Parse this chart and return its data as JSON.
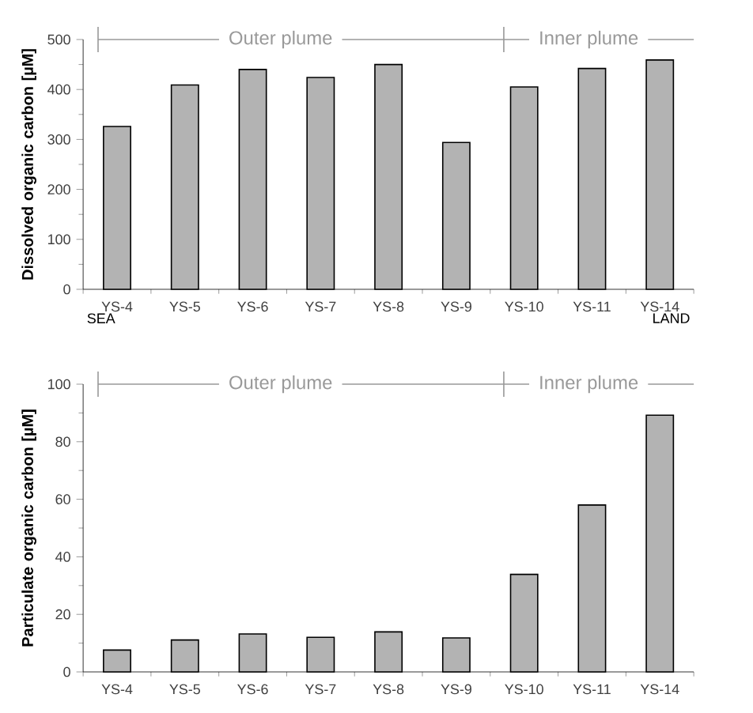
{
  "chart_data": [
    {
      "type": "bar",
      "ylabel": "Dissolved organic carbon [µM]",
      "categories": [
        "YS-4",
        "YS-5",
        "YS-6",
        "YS-7",
        "YS-8",
        "YS-9",
        "YS-10",
        "YS-11",
        "YS-14"
      ],
      "values": [
        326,
        409,
        440,
        424,
        450,
        294,
        405,
        442,
        459
      ],
      "color": "#b3b3b3",
      "ylim": [
        0,
        500
      ],
      "yticks": [
        0,
        100,
        200,
        300,
        400,
        500
      ],
      "annotations": [
        "Outer plume",
        "Inner plume",
        "SEA",
        "LAND"
      ]
    },
    {
      "type": "bar",
      "ylabel": "Particulate organic carbon [µM]",
      "categories": [
        "YS-4",
        "YS-5",
        "YS-6",
        "YS-7",
        "YS-8",
        "YS-9",
        "YS-10",
        "YS-11",
        "YS-14"
      ],
      "values": [
        7.6,
        11.1,
        13.2,
        12.0,
        13.9,
        11.8,
        33.9,
        58.0,
        89.2
      ],
      "color": "#b3b3b3",
      "ylim": [
        0,
        100
      ],
      "yticks": [
        0,
        20,
        40,
        60,
        80,
        100
      ],
      "annotations": [
        "Outer plume",
        "Inner plume"
      ]
    }
  ]
}
